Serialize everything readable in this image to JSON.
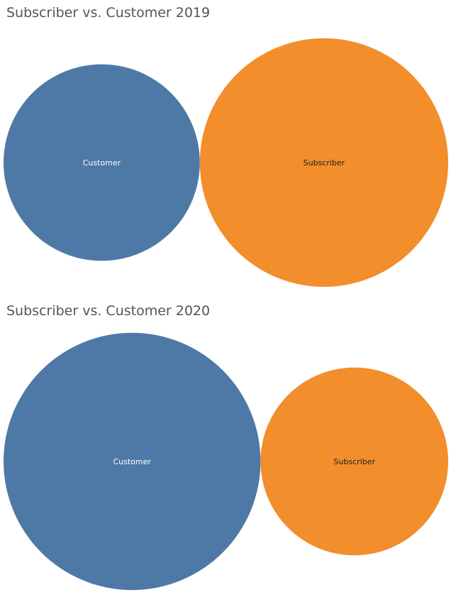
{
  "chart_data": [
    {
      "type": "bubble",
      "title": "Subscriber vs. Customer 2019",
      "legend": "none",
      "grid": false,
      "categories": [
        "Customer",
        "Subscriber"
      ],
      "relative_size": [
        0.79,
        1.0
      ],
      "colors": [
        "#4e79a7",
        "#f28e2b"
      ],
      "label_colors": [
        "#ffffff",
        "#222222"
      ]
    },
    {
      "type": "bubble",
      "title": "Subscriber vs. Customer 2020",
      "legend": "none",
      "grid": false,
      "categories": [
        "Customer",
        "Subscriber"
      ],
      "relative_size": [
        1.0,
        0.73
      ],
      "colors": [
        "#4e79a7",
        "#f28e2b"
      ],
      "label_colors": [
        "#ffffff",
        "#222222"
      ]
    }
  ]
}
